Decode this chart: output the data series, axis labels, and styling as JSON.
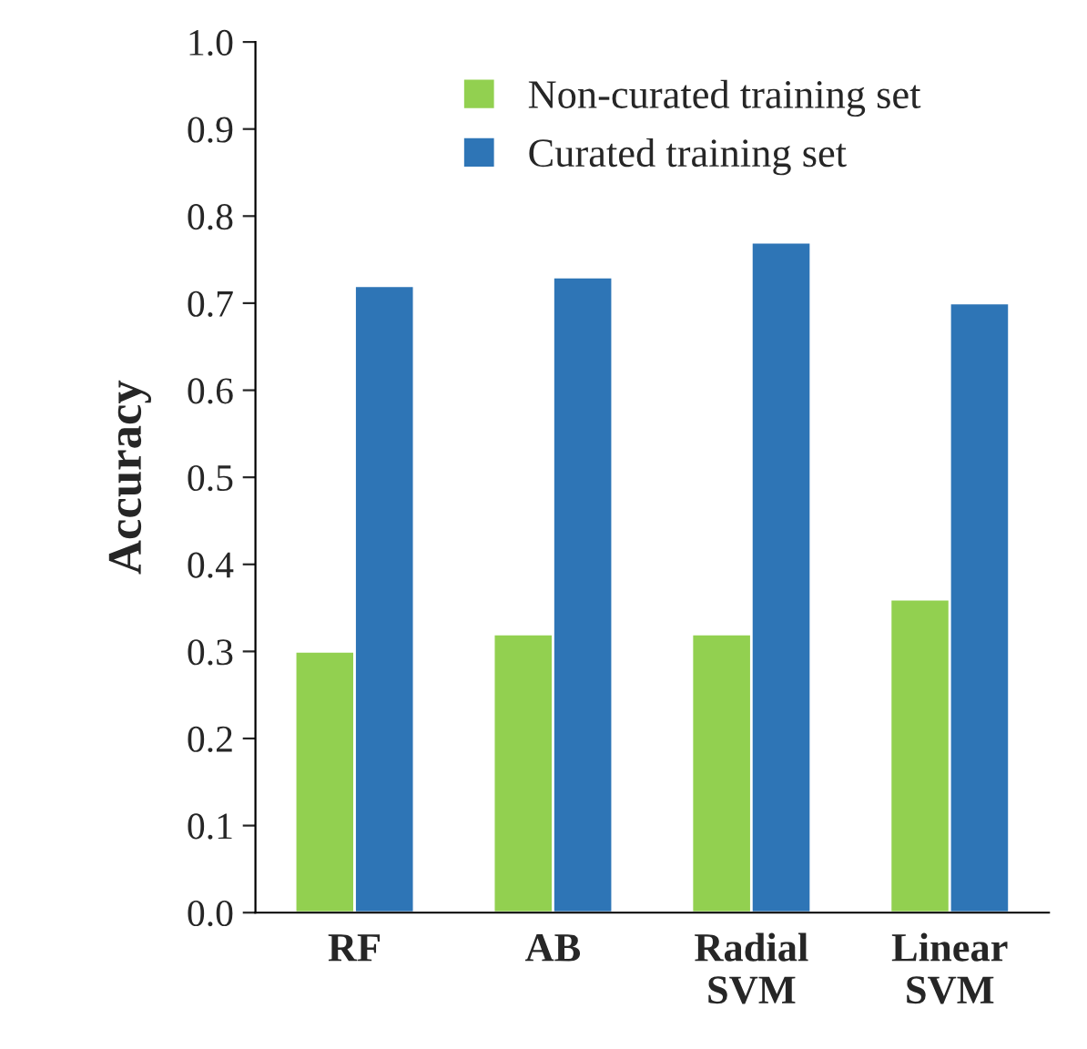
{
  "chart_data": {
    "type": "bar",
    "ylabel": "Accuracy",
    "categories": [
      "RF",
      "AB",
      "Radial\nSVM",
      "Linear\nSVM"
    ],
    "series": [
      {
        "name": "Non-curated training set",
        "color": "#92d050",
        "values": [
          0.3,
          0.32,
          0.32,
          0.36
        ]
      },
      {
        "name": "Curated training set",
        "color": "#2e75b6",
        "values": [
          0.72,
          0.73,
          0.77,
          0.7
        ]
      }
    ],
    "ylim": [
      0,
      1.0
    ],
    "yticks": [
      {
        "value": 0,
        "label": "0.0"
      },
      0.1,
      0.2,
      0.3,
      0.4,
      0.5,
      0.6,
      0.7,
      0.8,
      0.9,
      {
        "value": 1.0,
        "label": "1.0"
      }
    ],
    "grid": false,
    "legend": "top"
  }
}
